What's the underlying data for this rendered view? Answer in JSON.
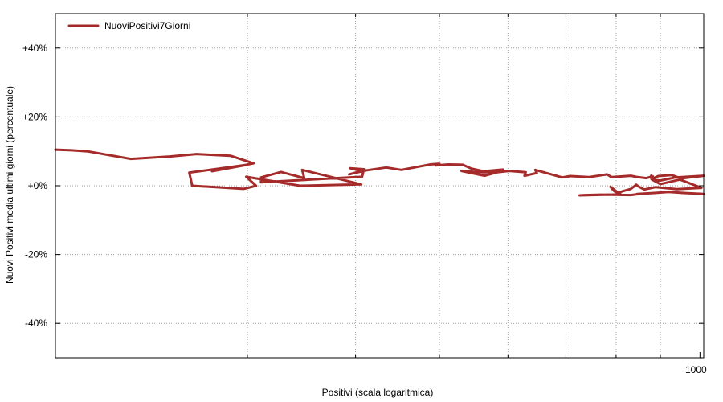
{
  "chart_data": {
    "type": "line",
    "xlabel": "Positivi (scala logaritmica)",
    "ylabel": "Nuovi Positivi media ultimi giorni (percentuale)",
    "x_scale": "log",
    "xlim": [
      180,
      1010
    ],
    "ylim": [
      -50,
      50
    ],
    "x_ticks": [
      {
        "value": 1000,
        "label": "1000"
      }
    ],
    "x_minor_grid": [
      300,
      400,
      500,
      600,
      700,
      800,
      900
    ],
    "y_ticks": [
      {
        "value": 40,
        "label": "+40%"
      },
      {
        "value": 20,
        "label": "+20%"
      },
      {
        "value": 0,
        "label": "+0%"
      },
      {
        "value": -20,
        "label": "-20%"
      },
      {
        "value": -40,
        "label": "-40%"
      }
    ],
    "grid": true,
    "legend_position": "top-left",
    "colors": {
      "series": "#a52a2a",
      "grid": "#a0a0a0",
      "axis": "#000000"
    },
    "series": [
      {
        "name": "NuoviPositivi7Giorni",
        "x": [
          180,
          188,
          196,
          220,
          244,
          262,
          287,
          305,
          273,
          300,
          257,
          259,
          297,
          307,
          299,
          345,
          406,
          347,
          349,
          328,
          311,
          311,
          407,
          409,
          394,
          407,
          393,
          410,
          434,
          452,
          488,
          500,
          495,
          512,
          532,
          544,
          562,
          567,
          592,
          580,
          572,
          557,
          530,
          564,
          583,
          602,
          629,
          627,
          648,
          645,
          680,
          693,
          708,
          744,
          781,
          790,
          832,
          847,
          867,
          875,
          882,
          878,
          879,
          895,
          927,
          951,
          1010,
          937,
          899,
          880,
          900,
          948,
          1004,
          940,
          889,
          862,
          849,
          844,
          832,
          804,
          788,
          796,
          810,
          783,
          726,
          737,
          767,
          772,
          832,
          851,
          846,
          886,
          920,
          957,
          1010
        ],
        "y": [
          10.5,
          10.3,
          10.0,
          7.8,
          8.5,
          9.2,
          8.7,
          6.5,
          4.2,
          6.1,
          3.8,
          0.0,
          -0.9,
          0.0,
          2.6,
          0.0,
          0.4,
          4.6,
          2.2,
          4.0,
          2.4,
          1.0,
          2.6,
          4.8,
          5.1,
          4.3,
          3.3,
          4.4,
          5.3,
          4.6,
          6.2,
          6.4,
          5.9,
          6.2,
          6.1,
          5.0,
          4.2,
          4.3,
          4.7,
          3.7,
          3.9,
          3.9,
          4.3,
          2.9,
          3.9,
          4.3,
          3.9,
          2.9,
          3.7,
          4.6,
          3.0,
          2.4,
          2.8,
          2.5,
          3.3,
          2.5,
          2.9,
          2.5,
          2.2,
          2.5,
          2.7,
          2.9,
          1.9,
          2.8,
          3.1,
          2.1,
          2.9,
          2.4,
          1.5,
          1.8,
          0.5,
          1.8,
          -0.6,
          -1.0,
          -0.4,
          -1.1,
          -0.2,
          0.3,
          -0.9,
          -2.0,
          -0.3,
          -1.6,
          -2.5,
          -2.6,
          -2.8,
          -2.7,
          -2.6,
          -2.6,
          -2.7,
          -2.4,
          -2.4,
          -2.1,
          -1.8,
          -2.1,
          -2.4
        ]
      }
    ]
  }
}
